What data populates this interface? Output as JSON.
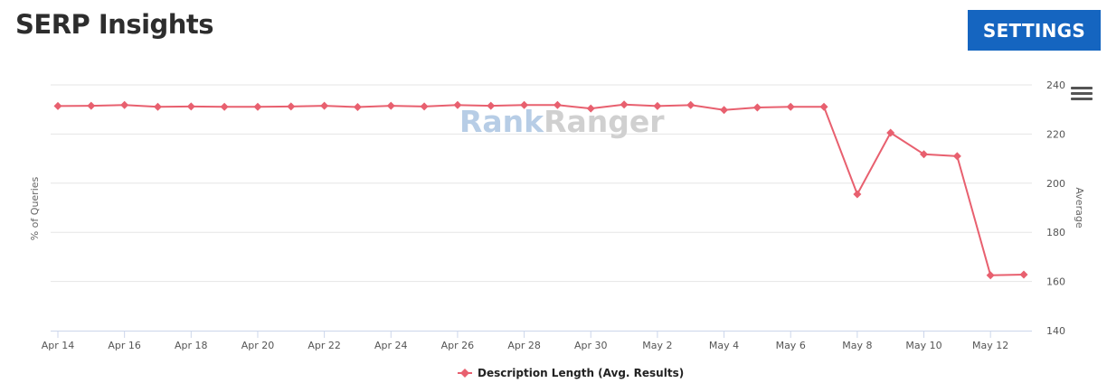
{
  "header": {
    "title": "SERP Insights",
    "settings_label": "SETTINGS"
  },
  "watermark": {
    "part1": "Rank",
    "part2": "Ranger"
  },
  "colors": {
    "series": "#e8606f",
    "accent": "#1565c0",
    "grid": "#e6e6e6",
    "watermark_blue": "#b7cde6",
    "watermark_gray": "#d0d0d0"
  },
  "chart_data": {
    "type": "line",
    "xlabel": "",
    "ylabel_left": "% of Queries",
    "ylabel_right": "Average",
    "ylim": [
      140,
      240
    ],
    "yticks": [
      140,
      160,
      180,
      200,
      220,
      240
    ],
    "grid": true,
    "legend_position": "bottom-center",
    "categories": [
      "Apr 14",
      "Apr 15",
      "Apr 16",
      "Apr 17",
      "Apr 18",
      "Apr 19",
      "Apr 20",
      "Apr 21",
      "Apr 22",
      "Apr 23",
      "Apr 24",
      "Apr 25",
      "Apr 26",
      "Apr 27",
      "Apr 28",
      "Apr 29",
      "Apr 30",
      "May 1",
      "May 2",
      "May 3",
      "May 4",
      "May 5",
      "May 6",
      "May 7",
      "May 8",
      "May 9",
      "May 10",
      "May 11",
      "May 12",
      "May 13"
    ],
    "xtick_labels": [
      "Apr 14",
      "Apr 16",
      "Apr 18",
      "Apr 20",
      "Apr 22",
      "Apr 24",
      "Apr 26",
      "Apr 28",
      "Apr 30",
      "May 2",
      "May 4",
      "May 6",
      "May 8",
      "May 10",
      "May 12"
    ],
    "series": [
      {
        "name": "Description Length (Avg. Results)",
        "values": [
          231.4,
          231.5,
          231.8,
          231.1,
          231.2,
          231.1,
          231.1,
          231.2,
          231.5,
          231.0,
          231.5,
          231.2,
          231.8,
          231.5,
          231.8,
          231.8,
          230.4,
          232.0,
          231.4,
          231.8,
          229.8,
          230.8,
          231.1,
          231.1,
          195.5,
          220.5,
          211.8,
          211.0,
          162.5,
          162.8
        ]
      }
    ]
  }
}
